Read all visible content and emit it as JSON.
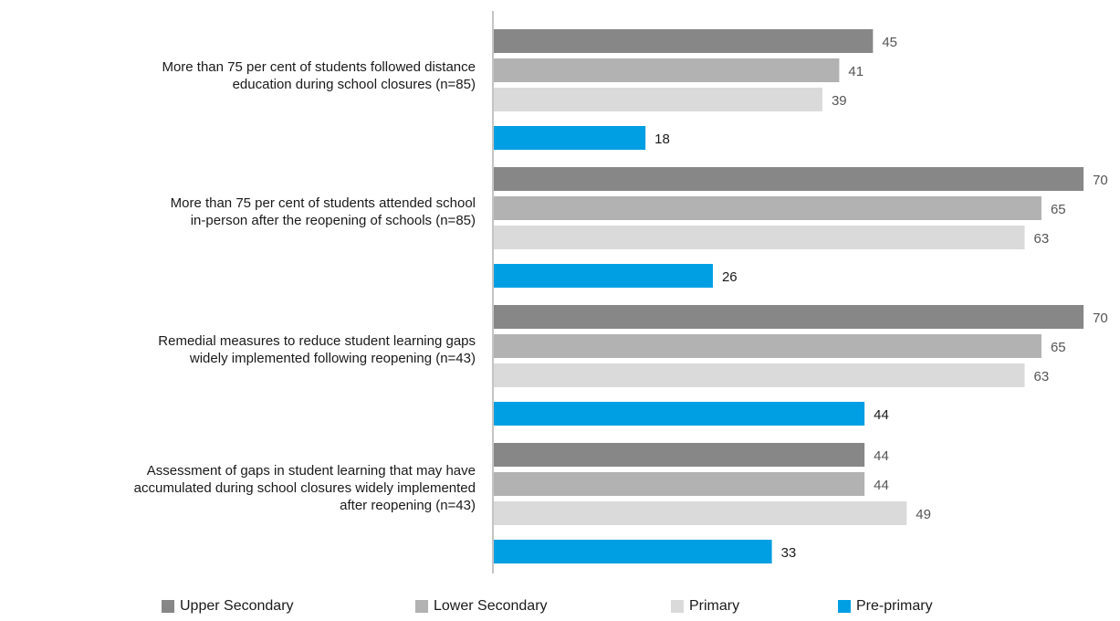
{
  "chart_data": {
    "type": "bar",
    "orientation": "horizontal",
    "categories": [
      "More than 75 per cent of students followed distance education during school closures (n=85)",
      "More than 75 per cent of students attended school in-person after the reopening of schools (n=85)",
      "Remedial measures to reduce student learning gaps widely implemented following reopening (n=43)",
      "Assessment of gaps in student learning that may have accumulated during school closures widely implemented after reopening (n=43)"
    ],
    "category_lines": [
      [
        "More than 75 per cent of students followed distance",
        "education during school closures (n=85)"
      ],
      [
        "More than 75 per cent of students attended school",
        "in-person after the reopening of schools (n=85)"
      ],
      [
        "Remedial measures to reduce student learning gaps",
        "widely implemented following reopening (n=43)"
      ],
      [
        "Assessment of gaps in student learning that may have",
        "accumulated during school closures widely implemented",
        "after reopening (n=43)"
      ]
    ],
    "series": [
      {
        "name": "Upper Secondary",
        "color": "#878787",
        "values": [
          45,
          70,
          70,
          44
        ]
      },
      {
        "name": "Lower Secondary",
        "color": "#b2b2b2",
        "values": [
          41,
          65,
          65,
          44
        ]
      },
      {
        "name": "Primary",
        "color": "#dadada",
        "values": [
          39,
          63,
          63,
          49
        ]
      },
      {
        "name": "Pre-primary",
        "color": "#009fe3",
        "values": [
          18,
          26,
          44,
          33
        ]
      }
    ],
    "xlim": [
      0,
      70
    ],
    "grid": false,
    "legend_position": "bottom",
    "data_labels": true
  }
}
